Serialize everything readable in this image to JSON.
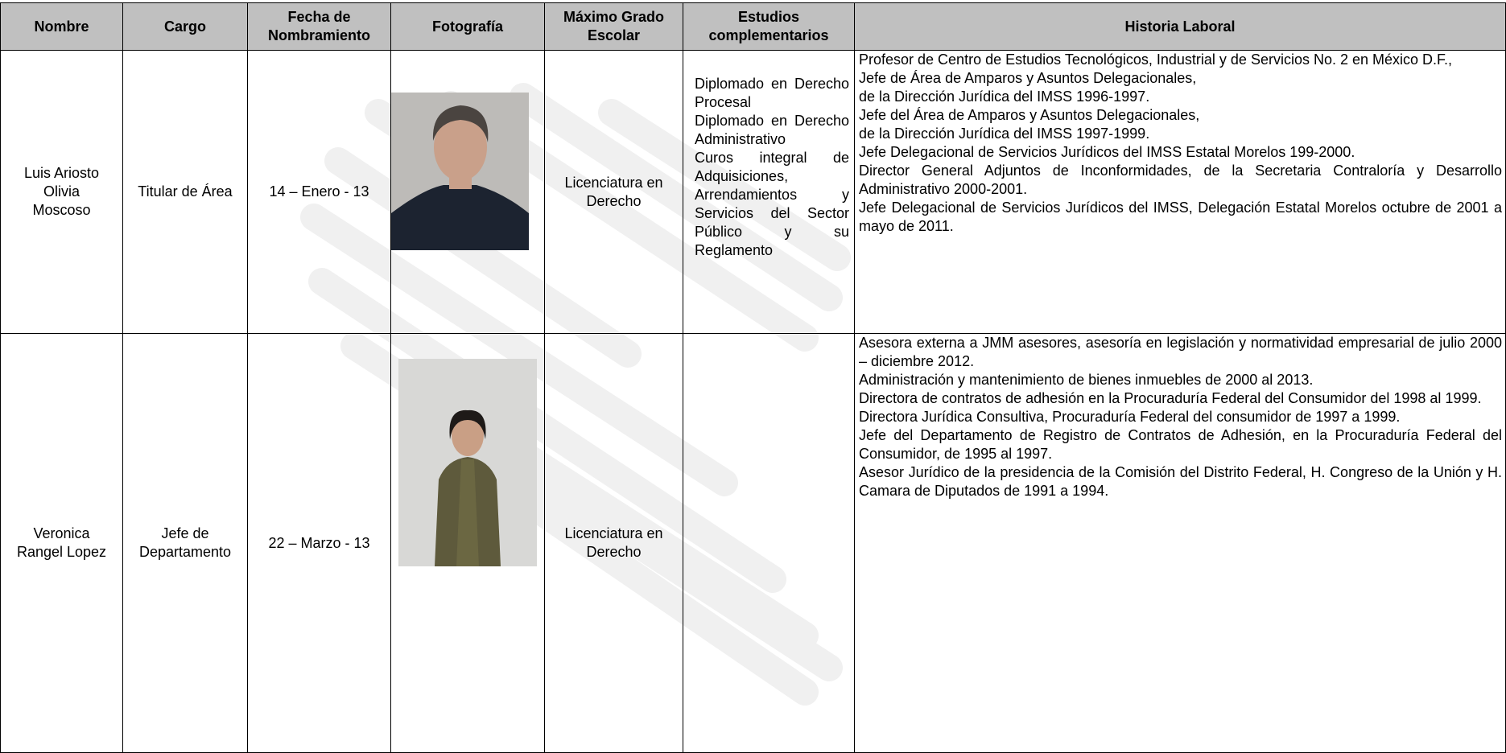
{
  "header": {
    "columns": [
      "Nombre",
      "Cargo",
      "Fecha de Nombramiento",
      "Fotografía",
      "Máximo Grado Escolar",
      "Estudios complementarios",
      "Historia Laboral"
    ]
  },
  "table": {
    "rows": [
      {
        "nombre": "Luis Ariosto Olivia Moscoso",
        "cargo": "Titular de Área",
        "fecha": "14 – Enero - 13",
        "grado": "Licenciatura en Derecho",
        "estudios": [
          "Diplomado en Derecho Procesal",
          "Diplomado en Derecho Administrativo",
          "Curos integral de Adquisiciones, Arrendamientos y Servicios del Sector Público y su Reglamento"
        ],
        "historia": [
          "Profesor de Centro de Estudios Tecnológicos, Industrial y de Servicios No. 2 en México D.F.,",
          "Jefe de Área de Amparos y Asuntos Delegacionales,",
          "de la Dirección Jurídica del IMSS 1996-1997.",
          "Jefe del Área de Amparos y Asuntos Delegacionales,",
          "de la Dirección  Jurídica del IMSS 1997-1999.",
          "Jefe Delegacional de Servicios Jurídicos del IMSS Estatal Morelos 199-2000.",
          "Director General Adjuntos de Inconformidades, de la Secretaria Contraloría y Desarrollo Administrativo 2000-2001.",
          "Jefe Delegacional de Servicios Jurídicos del IMSS, Delegación Estatal Morelos octubre de 2001 a mayo de 2011."
        ]
      },
      {
        "nombre": "Veronica Rangel Lopez",
        "cargo": "Jefe de Departamento",
        "fecha": "22 – Marzo - 13",
        "grado": "Licenciatura en Derecho",
        "estudios": [],
        "historia": [
          "Asesora externa a JMM asesores, asesoría en legislación y normatividad empresarial de julio 2000 – diciembre 2012.",
          "Administración y mantenimiento de bienes inmuebles de 2000 al 2013.",
          "Directora de contratos de adhesión en la Procuraduría Federal del Consumidor del 1998 al 1999.",
          "Directora Jurídica Consultiva, Procuraduría Federal del consumidor de 1997 a 1999.",
          "Jefe del Departamento de Registro de Contratos de Adhesión, en la Procuraduría Federal del Consumidor, de  1995 al 1997.",
          "Asesor Jurídico de la presidencia de la Comisión del Distrito Federal, H. Congreso de la Unión y H. Camara de Diputados de 1991 a 1994."
        ]
      }
    ]
  }
}
